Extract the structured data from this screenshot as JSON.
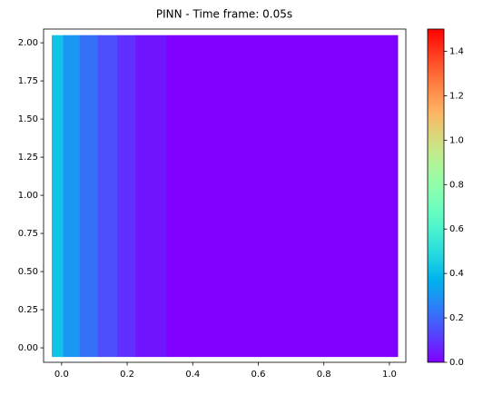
{
  "chart_data": {
    "type": "heatmap",
    "title": "PINN - Time frame: 0.05s",
    "colormap": "rainbow",
    "x_bins": [
      -0.03,
      0.005,
      0.055,
      0.11,
      0.17,
      0.225,
      0.32,
      1.025
    ],
    "y_range": [
      -0.06,
      2.05
    ],
    "values": [
      0.42,
      0.3,
      0.22,
      0.15,
      0.09,
      0.04,
      0.0
    ],
    "xlim": [
      -0.055,
      1.05
    ],
    "xticks": [
      {
        "value": 0,
        "label": "0.0"
      },
      0.2,
      0.4,
      0.6,
      0.8,
      {
        "value": 1,
        "label": "1.0"
      }
    ],
    "ylim": [
      -0.095,
      2.09
    ],
    "yticks": [
      {
        "value": 0,
        "label": "0.00"
      },
      0.25,
      {
        "value": 0.5,
        "label": "0.50"
      },
      0.75,
      {
        "value": 1,
        "label": "1.00"
      },
      1.25,
      {
        "value": 1.5,
        "label": "1.50"
      },
      1.75,
      {
        "value": 2,
        "label": "2.00"
      }
    ],
    "clim": [
      0,
      1.5
    ],
    "cticks": [
      {
        "value": 0,
        "label": "0.0"
      },
      0.2,
      0.4,
      0.6,
      0.8,
      {
        "value": 1,
        "label": "1.0"
      },
      1.2,
      1.4
    ]
  }
}
